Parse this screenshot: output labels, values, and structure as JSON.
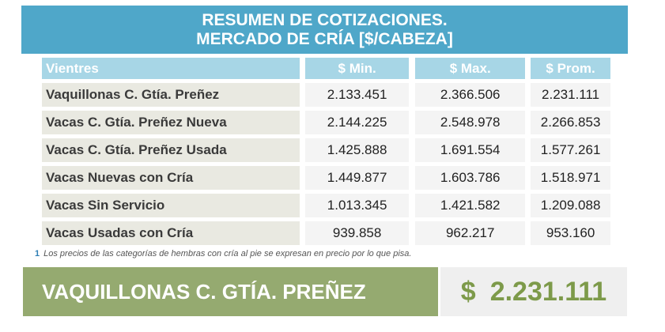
{
  "header": {
    "line1": "RESUMEN DE COTIZACIONES.",
    "line2": "MERCADO DE CRÍA [$/CABEZA]"
  },
  "table": {
    "columns": [
      "Vientres",
      "$ Min.",
      "$ Max.",
      "$ Prom."
    ],
    "rows": [
      [
        "Vaquillonas C. Gtía. Preñez",
        "2.133.451",
        "2.366.506",
        "2.231.111"
      ],
      [
        "Vacas C. Gtía. Preñez Nueva",
        "2.144.225",
        "2.548.978",
        "2.266.853"
      ],
      [
        "Vacas C. Gtía. Preñez Usada",
        "1.425.888",
        "1.691.554",
        "1.577.261"
      ],
      [
        "Vacas Nuevas con Cría",
        "1.449.877",
        "1.603.786",
        "1.518.971"
      ],
      [
        "Vacas Sin Servicio",
        "1.013.345",
        "1.421.582",
        "1.209.088"
      ],
      [
        "Vacas Usadas con Cría",
        "939.858",
        "962.217",
        "953.160"
      ]
    ]
  },
  "footnote": {
    "number": "1",
    "text": "Los precios de las categorías de hembras con cría al pie se expresan en precio por lo que pisa."
  },
  "summary": {
    "label": "VAQUILLONAS C. GTÍA. PREÑEZ",
    "currency": "$",
    "value": "2.231.111"
  },
  "colors": {
    "banner": "#4fa7c9",
    "table_header": "#a7d6e6",
    "summary_green": "#95aa70",
    "value_green": "#7d9a4a"
  }
}
